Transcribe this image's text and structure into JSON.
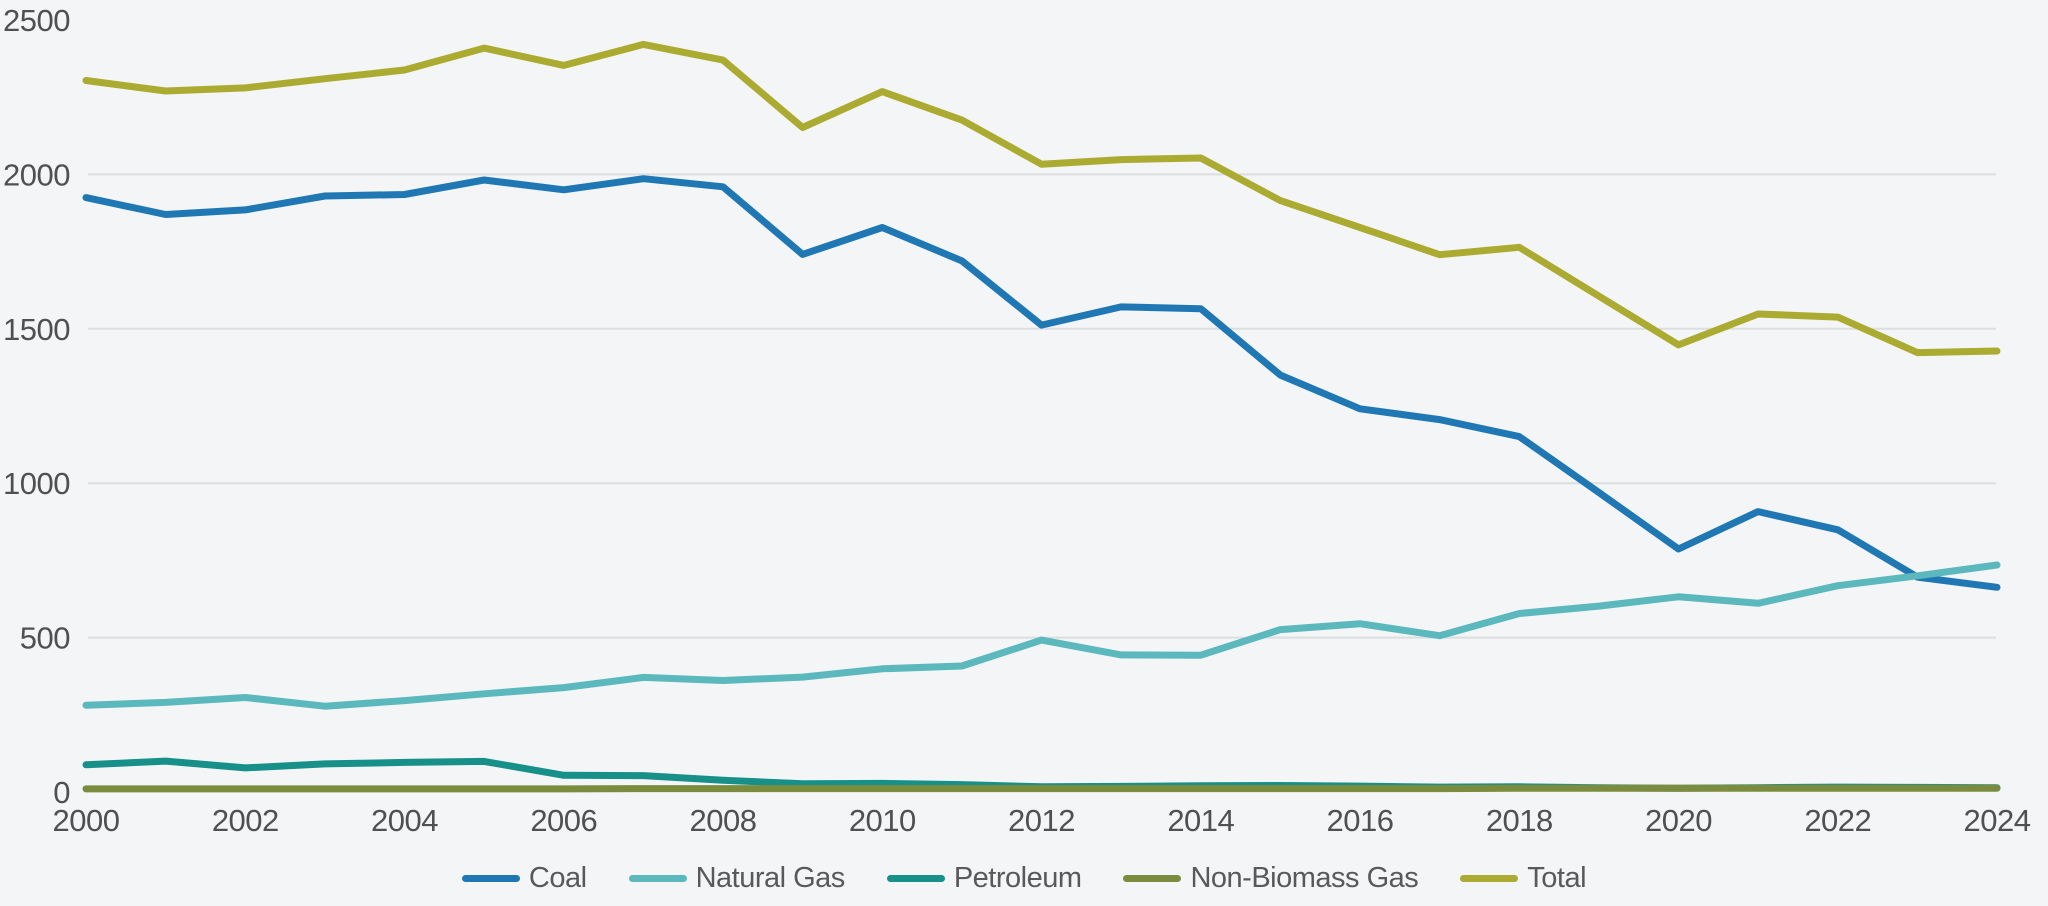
{
  "chart_data": {
    "type": "line",
    "title": "",
    "xlabel": "",
    "ylabel": "",
    "x": [
      2000,
      2001,
      2002,
      2003,
      2004,
      2005,
      2006,
      2007,
      2008,
      2009,
      2010,
      2011,
      2012,
      2013,
      2014,
      2015,
      2016,
      2017,
      2018,
      2019,
      2020,
      2021,
      2022,
      2023,
      2024
    ],
    "x_tick_labels": [
      "2000",
      "2002",
      "2004",
      "2006",
      "2008",
      "2010",
      "2012",
      "2014",
      "2016",
      "2018",
      "2020",
      "2022",
      "2024"
    ],
    "y_ticks": [
      0,
      500,
      1000,
      1500,
      2000,
      2500
    ],
    "y_gridline_values": [
      500,
      1000,
      1500,
      2000
    ],
    "ylim": [
      0,
      2500
    ],
    "grid": "horizontal-only",
    "legend_position": "bottom-center",
    "series": [
      {
        "name": "Coal",
        "color": "#1f78b4",
        "values": [
          1925,
          1870,
          1885,
          1930,
          1935,
          1982,
          1950,
          1986,
          1960,
          1741,
          1828,
          1720,
          1512,
          1571,
          1565,
          1350,
          1241,
          1206,
          1151,
          970,
          787,
          908,
          849,
          696,
          663
        ]
      },
      {
        "name": "Natural Gas",
        "color": "#5bb8bd",
        "values": [
          281,
          290,
          306,
          278,
          296,
          318,
          338,
          371,
          361,
          372,
          399,
          408,
          492,
          444,
          443,
          526,
          545,
          506,
          578,
          602,
          632,
          611,
          668,
          700,
          735
        ]
      },
      {
        "name": "Petroleum",
        "color": "#17908a",
        "values": [
          88,
          100,
          78,
          91,
          96,
          99,
          54,
          53,
          38,
          27,
          28,
          24,
          17,
          18,
          20,
          21,
          19,
          16,
          17,
          14,
          12,
          14,
          16,
          15,
          14
        ]
      },
      {
        "name": "Non-Biomass Gas",
        "color": "#7b8c3e",
        "values": [
          10,
          10,
          10,
          10,
          10,
          10,
          10,
          11,
          11,
          11,
          11,
          11,
          11,
          11,
          11,
          11,
          11,
          11,
          12,
          12,
          12,
          12,
          12,
          12,
          12
        ]
      },
      {
        "name": "Total",
        "color": "#abab32",
        "values": [
          2304,
          2270,
          2280,
          2310,
          2338,
          2409,
          2353,
          2421,
          2370,
          2152,
          2268,
          2176,
          2033,
          2048,
          2053,
          1915,
          1828,
          1740,
          1764,
          1606,
          1448,
          1548,
          1538,
          1423,
          1428
        ]
      }
    ]
  },
  "colors": {
    "background": "#f4f5f6",
    "gridline": "#dcdee0",
    "tick_text": "#4f5052",
    "legend_text": "#58595b"
  }
}
